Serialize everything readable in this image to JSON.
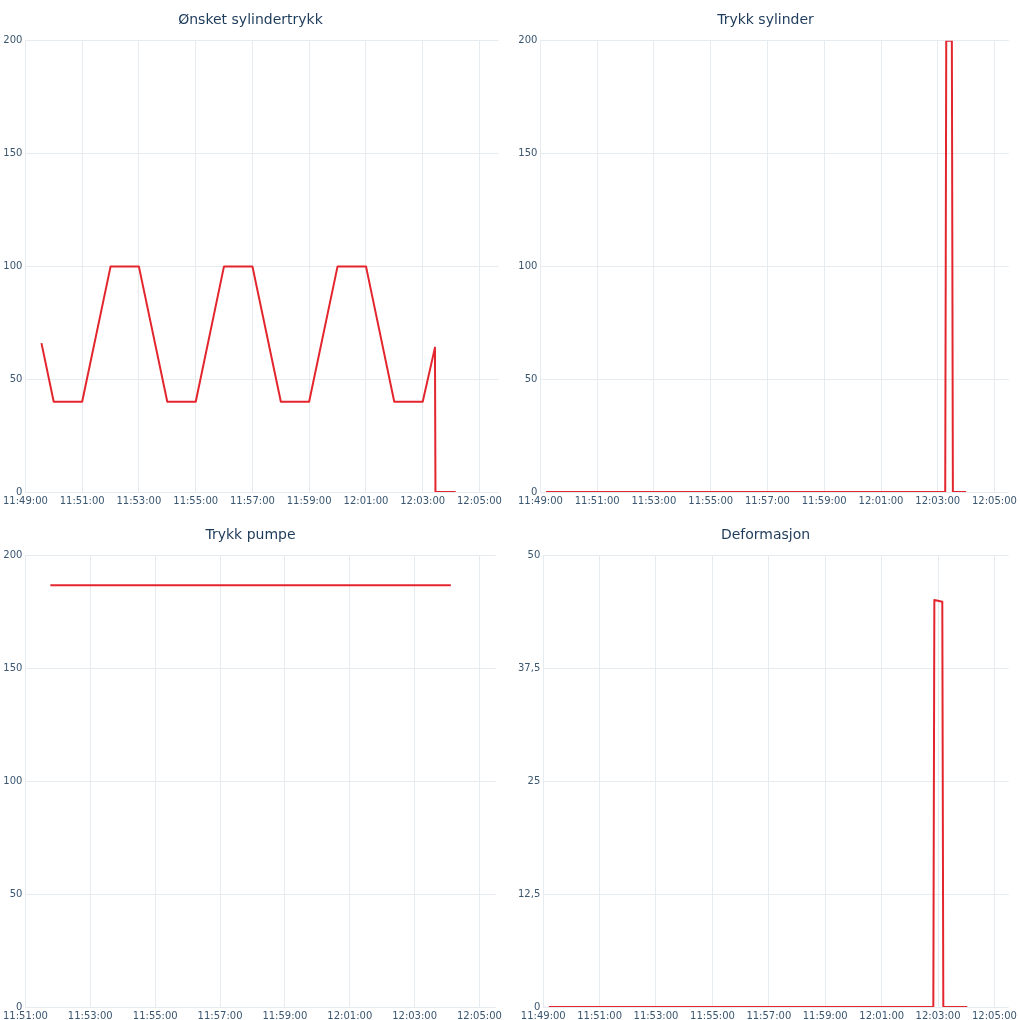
{
  "chart_data": [
    {
      "type": "line",
      "title": "Ønsket sylindertrykk",
      "color": "#e3262e",
      "marker": "none",
      "grid": true,
      "x": [
        11.8261,
        11.8333,
        11.85,
        11.8667,
        11.8833,
        11.9,
        11.9167,
        11.9333,
        11.95,
        11.9667,
        11.9833,
        12.0,
        12.0167,
        12.0333,
        12.05,
        12.0572,
        12.0575,
        12.0694
      ],
      "values": [
        66,
        40,
        40,
        100,
        100,
        40,
        40,
        100,
        100,
        40,
        40,
        100,
        100,
        40,
        40,
        64,
        0,
        0
      ],
      "xlim": [
        11.8167,
        12.0944
      ],
      "ylim": [
        0,
        200
      ],
      "yticks": [
        0,
        50,
        100,
        150,
        200
      ],
      "xticks": [
        {
          "value": 11.8167,
          "label": "11:49:00"
        },
        {
          "value": 11.85,
          "label": "11:51:00"
        },
        {
          "value": 11.8833,
          "label": "11:53:00"
        },
        {
          "value": 11.9167,
          "label": "11:55:00"
        },
        {
          "value": 11.95,
          "label": "11:57:00"
        },
        {
          "value": 11.9833,
          "label": "11:59:00"
        },
        {
          "value": 12.0167,
          "label": "12:01:00"
        },
        {
          "value": 12.05,
          "label": "12:03:00"
        },
        {
          "value": 12.0833,
          "label": "12:05:00"
        }
      ]
    },
    {
      "type": "line",
      "title": "Trykk sylinder",
      "color": "#e3262e",
      "marker": "none",
      "grid": true,
      "x": [
        11.82,
        12.0544,
        12.055,
        12.0583,
        12.0589,
        12.0667
      ],
      "values": [
        0,
        0,
        200,
        200,
        0,
        0
      ],
      "xlim": [
        11.8167,
        12.0917
      ],
      "ylim": [
        0,
        200
      ],
      "yticks": [
        0,
        50,
        100,
        150,
        200
      ],
      "xticks": [
        {
          "value": 11.8167,
          "label": "11:49:00"
        },
        {
          "value": 11.85,
          "label": "11:51:00"
        },
        {
          "value": 11.8833,
          "label": "11:53:00"
        },
        {
          "value": 11.9167,
          "label": "11:55:00"
        },
        {
          "value": 11.95,
          "label": "11:57:00"
        },
        {
          "value": 11.9833,
          "label": "11:59:00"
        },
        {
          "value": 12.0167,
          "label": "12:01:00"
        },
        {
          "value": 12.05,
          "label": "12:03:00"
        },
        {
          "value": 12.0833,
          "label": "12:05:00"
        }
      ]
    },
    {
      "type": "line",
      "title": "Trykk pumpe",
      "color": "#e3262e",
      "marker": "none",
      "grid": true,
      "x": [
        11.8628,
        12.0686
      ],
      "values": [
        187,
        187
      ],
      "xlim": [
        11.85,
        12.0917
      ],
      "ylim": [
        0,
        200
      ],
      "yticks": [
        0,
        50,
        100,
        150,
        200
      ],
      "xticks": [
        {
          "value": 11.85,
          "label": "11:51:00"
        },
        {
          "value": 11.8833,
          "label": "11:53:00"
        },
        {
          "value": 11.9167,
          "label": "11:55:00"
        },
        {
          "value": 11.95,
          "label": "11:57:00"
        },
        {
          "value": 11.9833,
          "label": "11:59:00"
        },
        {
          "value": 12.0167,
          "label": "12:01:00"
        },
        {
          "value": 12.05,
          "label": "12:03:00"
        },
        {
          "value": 12.0833,
          "label": "12:05:00"
        }
      ]
    },
    {
      "type": "line",
      "title": "Deformasjon",
      "color": "#e3262e",
      "marker": "none",
      "grid": true,
      "x": [
        11.82,
        12.0472,
        12.0478,
        12.0525,
        12.0531,
        12.0672
      ],
      "values": [
        0,
        0,
        45.1,
        44.9,
        0,
        0
      ],
      "xlim": [
        11.8167,
        12.0917
      ],
      "ylim": [
        0,
        50
      ],
      "yticks": [
        0,
        {
          "value": 12.5,
          "label": "12,5"
        },
        25,
        {
          "value": 37.5,
          "label": "37,5"
        },
        50
      ],
      "xticks": [
        {
          "value": 11.8167,
          "label": "11:49:00"
        },
        {
          "value": 11.85,
          "label": "11:51:00"
        },
        {
          "value": 11.8833,
          "label": "11:53:00"
        },
        {
          "value": 11.9167,
          "label": "11:55:00"
        },
        {
          "value": 11.95,
          "label": "11:57:00"
        },
        {
          "value": 11.9833,
          "label": "11:59:00"
        },
        {
          "value": 12.0167,
          "label": "12:01:00"
        },
        {
          "value": 12.05,
          "label": "12:03:00"
        },
        {
          "value": 12.0833,
          "label": "12:05:00"
        }
      ]
    }
  ]
}
